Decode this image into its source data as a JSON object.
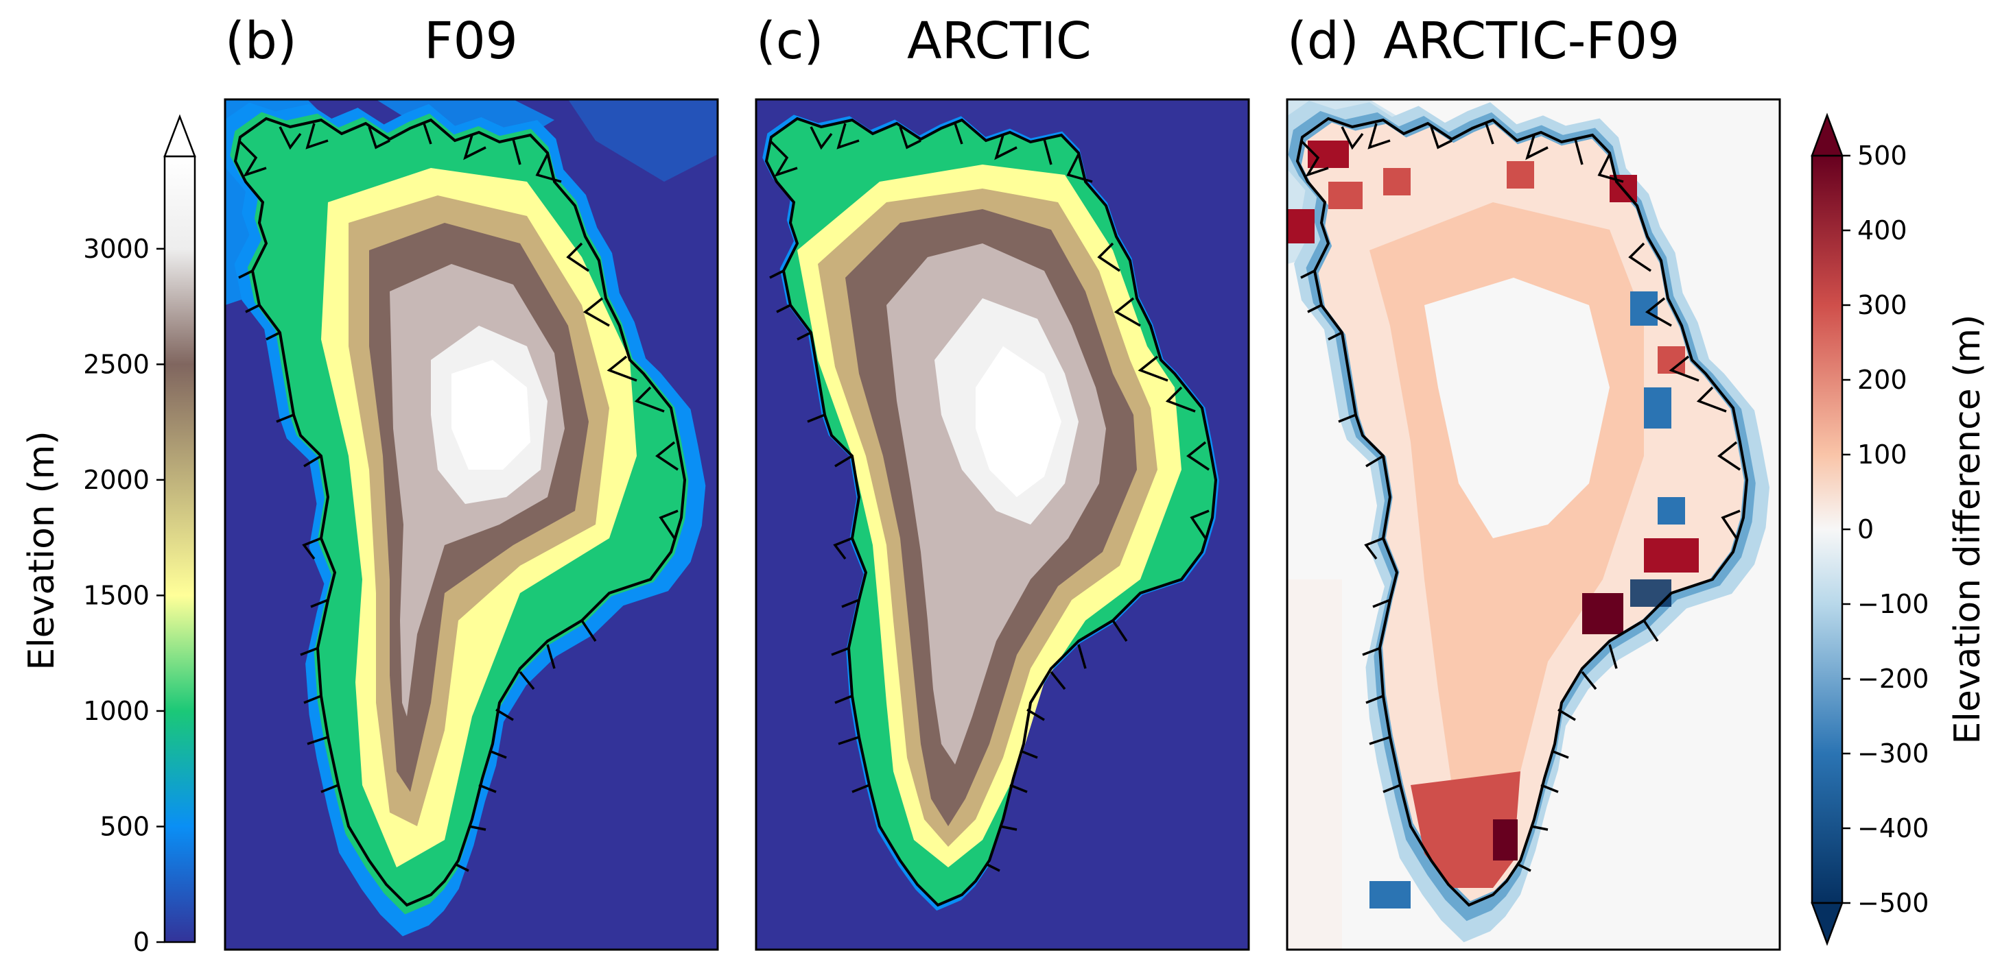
{
  "panels": [
    {
      "label": "(b)",
      "title": "F09"
    },
    {
      "label": "(c)",
      "title": "ARCTIC"
    },
    {
      "label": "(d)",
      "title": "ARCTIC-F09"
    }
  ],
  "chart_data": [
    {
      "type": "heatmap",
      "panels": [
        "(b) F09",
        "(c) ARCTIC"
      ],
      "colormap": "terrain",
      "colorbar": {
        "label": "Elevation (m)",
        "position": "left",
        "range": [
          0,
          3400
        ],
        "extend": "max",
        "ticks": [
          0,
          500,
          1000,
          1500,
          2000,
          2500,
          3000
        ],
        "tick_labels": [
          "0",
          "500",
          "1000",
          "1500",
          "2000",
          "2500",
          "3000"
        ],
        "colors": {
          "0": "#333399",
          "500": "#0a8ff5",
          "1000": "#1bc877",
          "1500": "#ffff99",
          "2500": "#80665f",
          "3000": "#ededed",
          "3400": "#ffffff"
        }
      }
    },
    {
      "type": "heatmap",
      "panels": [
        "(d) ARCTIC-F09"
      ],
      "colormap": "RdBu_r",
      "colorbar": {
        "label": "Elevation difference (m)",
        "position": "right",
        "range": [
          -500,
          500
        ],
        "extend": "both",
        "ticks": [
          -500,
          -400,
          -300,
          -200,
          -100,
          0,
          100,
          200,
          300,
          400,
          500
        ],
        "tick_labels": [
          "−500",
          "−400",
          "−300",
          "−200",
          "−100",
          "0",
          "100",
          "200",
          "300",
          "400",
          "500"
        ],
        "colors": {
          "-500": "#053061",
          "-300": "#2b74b3",
          "-100": "#b8d8ea",
          "0": "#f7f7f7",
          "100": "#f9c4a8",
          "300": "#cf4f4b",
          "500": "#67001f"
        }
      }
    }
  ]
}
